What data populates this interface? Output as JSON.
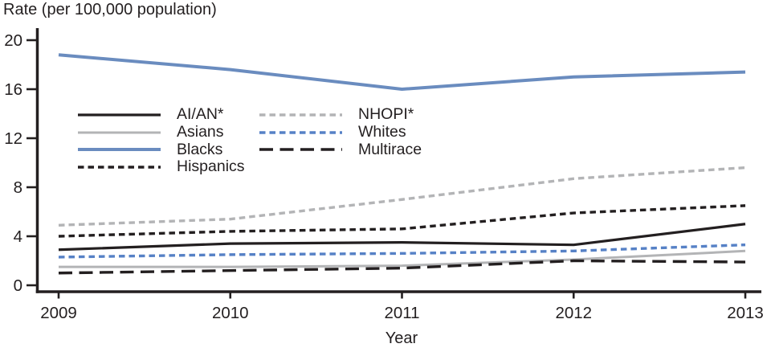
{
  "chart": {
    "title": "Rate (per 100,000 population)",
    "xlabel": "Year",
    "text_color": "#231f20",
    "axis_color": "#231f20"
  },
  "chart_data": {
    "type": "line",
    "title": "Rate (per 100,000 population)",
    "xlabel": "Year",
    "ylabel": "Rate (per 100,000 population)",
    "x": [
      2009,
      2010,
      2011,
      2012,
      2013
    ],
    "ylim": [
      0,
      20
    ],
    "yticks": [
      0,
      4,
      8,
      12,
      16,
      20
    ],
    "grid": false,
    "legend_position": "upper-left-inside",
    "series": [
      {
        "name": "AI/AN*",
        "values": [
          2.9,
          3.4,
          3.5,
          3.3,
          5.0
        ],
        "color": "#231f20",
        "style": "solid",
        "width": 3.2
      },
      {
        "name": "Asians",
        "values": [
          1.5,
          1.5,
          1.6,
          2.1,
          2.8
        ],
        "color": "#b3b4b6",
        "style": "solid",
        "width": 3.0
      },
      {
        "name": "Blacks",
        "values": [
          18.8,
          17.6,
          16.0,
          17.0,
          17.4
        ],
        "color": "#6a8cbf",
        "style": "solid",
        "width": 4.0
      },
      {
        "name": "Hispanics",
        "values": [
          4.0,
          4.4,
          4.6,
          5.9,
          6.5
        ],
        "color": "#231f20",
        "style": "dashed",
        "width": 3.4
      },
      {
        "name": "NHOPI*",
        "values": [
          4.9,
          5.4,
          7.0,
          8.7,
          9.6
        ],
        "color": "#b3b4b6",
        "style": "dashed",
        "width": 3.4
      },
      {
        "name": "Whites",
        "values": [
          2.3,
          2.5,
          2.6,
          2.8,
          3.3
        ],
        "color": "#5681c6",
        "style": "dashed",
        "width": 3.4
      },
      {
        "name": "Multirace",
        "values": [
          1.0,
          1.2,
          1.4,
          2.0,
          1.9
        ],
        "color": "#231f20",
        "style": "longdash",
        "width": 3.4
      }
    ]
  },
  "legend": {
    "column1": [
      "AI/AN*",
      "Asians",
      "Blacks",
      "Hispanics"
    ],
    "column2": [
      "NHOPI*",
      "Whites",
      "Multirace"
    ]
  }
}
